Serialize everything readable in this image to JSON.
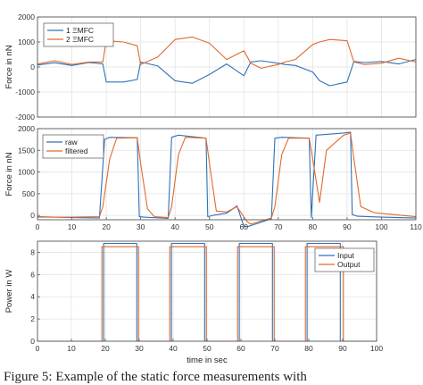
{
  "caption": "Figure 5: Example of the static force measurements with",
  "chart_data": [
    {
      "type": "line",
      "title": "",
      "xlabel": "",
      "ylabel": "Force in nN",
      "xlim": [
        0,
        110
      ],
      "ylim": [
        -2000,
        2000
      ],
      "yticks": [
        "2000",
        "1000",
        "0",
        "-1000",
        "-2000"
      ],
      "yticks_values": [
        2000,
        1000,
        0,
        -1000,
        -2000
      ],
      "grid": true,
      "legend": "top-left",
      "series": [
        {
          "name": "1 ΞMFC",
          "color": "#2e72b8",
          "x": [
            0,
            5,
            10,
            15,
            19,
            20,
            25,
            29,
            30,
            35,
            40,
            45,
            50,
            55,
            60,
            62,
            65,
            70,
            72,
            75,
            80,
            82,
            85,
            90,
            92,
            95,
            100,
            105,
            110
          ],
          "y": [
            80,
            170,
            60,
            180,
            120,
            -600,
            -600,
            -500,
            200,
            40,
            -550,
            -650,
            -300,
            120,
            -350,
            200,
            250,
            150,
            100,
            60,
            -200,
            -550,
            -750,
            -600,
            220,
            180,
            220,
            120,
            300
          ]
        },
        {
          "name": "2 ΞMFC",
          "color": "#e06a2c",
          "x": [
            0,
            5,
            10,
            15,
            19,
            20,
            25,
            29,
            30,
            35,
            40,
            45,
            50,
            55,
            60,
            62,
            65,
            70,
            72,
            75,
            80,
            82,
            85,
            90,
            92,
            95,
            100,
            105,
            110
          ],
          "y": [
            120,
            250,
            100,
            200,
            200,
            1050,
            1000,
            850,
            100,
            400,
            1100,
            1200,
            950,
            300,
            650,
            150,
            -50,
            100,
            200,
            300,
            900,
            1000,
            1100,
            1050,
            200,
            100,
            150,
            350,
            200
          ]
        }
      ]
    },
    {
      "type": "line",
      "title": "",
      "xlabel": "",
      "ylabel": "Force in nN",
      "xlim": [
        0,
        110
      ],
      "ylim": [
        -100,
        2000
      ],
      "xticks": [
        0,
        10,
        20,
        30,
        40,
        50,
        60,
        70,
        80,
        90,
        100,
        110
      ],
      "yticks": [
        "2000",
        "1500",
        "1000",
        "500",
        "0"
      ],
      "yticks_values": [
        2000,
        1500,
        1000,
        500,
        0
      ],
      "grid": true,
      "legend": "top-left",
      "series": [
        {
          "name": "raw",
          "color": "#2e72b8",
          "x": [
            0,
            10,
            18,
            19.5,
            21,
            29,
            29.6,
            31,
            38,
            39,
            41,
            49,
            49.5,
            51,
            55,
            58,
            60,
            61,
            68,
            69,
            71,
            79,
            79.6,
            81,
            89,
            91,
            91.5,
            93,
            100,
            110
          ],
          "y": [
            -30,
            -50,
            -60,
            1750,
            1800,
            1790,
            -30,
            -40,
            -70,
            1800,
            1850,
            1780,
            -30,
            0,
            50,
            220,
            -250,
            -260,
            -80,
            1780,
            1800,
            1780,
            -50,
            1850,
            1900,
            1920,
            20,
            -20,
            -40,
            -60
          ]
        },
        {
          "name": "filtered",
          "color": "#e06a2c",
          "x": [
            0,
            10,
            18,
            19,
            21,
            23,
            29,
            30,
            32,
            34,
            38,
            39,
            41,
            43,
            49,
            50,
            52,
            55,
            58,
            61,
            62,
            68,
            69,
            71,
            73,
            79,
            80,
            82,
            84,
            89,
            91,
            92,
            94,
            98,
            110
          ],
          "y": [
            -40,
            -40,
            -30,
            200,
            1300,
            1780,
            1790,
            1200,
            150,
            -30,
            -50,
            200,
            1400,
            1800,
            1780,
            1200,
            100,
            80,
            200,
            -150,
            -200,
            -60,
            200,
            1400,
            1780,
            1780,
            1300,
            300,
            1500,
            1850,
            1900,
            1300,
            200,
            60,
            -30
          ]
        }
      ]
    },
    {
      "type": "line",
      "title": "",
      "xlabel": "time in sec",
      "ylabel": "Power in W",
      "xlim": [
        0,
        100
      ],
      "ylim": [
        0,
        9
      ],
      "xticks": [
        0,
        10,
        20,
        30,
        40,
        50,
        60,
        70,
        80,
        90,
        100
      ],
      "yticks": [
        "8",
        "6",
        "4",
        "2",
        "0"
      ],
      "yticks_values": [
        8,
        6,
        4,
        2,
        0
      ],
      "grid": true,
      "legend": "top-right",
      "series": [
        {
          "name": "Input",
          "color": "#2e72b8",
          "x": [
            0,
            19.5,
            19.5,
            29.3,
            29.3,
            39.5,
            39.5,
            49.3,
            49.3,
            59.5,
            59.5,
            69.3,
            69.3,
            79.5,
            79.5,
            89.3,
            89.3,
            100
          ],
          "y": [
            0,
            0,
            8.8,
            8.8,
            0,
            0,
            8.8,
            8.8,
            0,
            0,
            8.8,
            8.8,
            0,
            0,
            8.8,
            8.8,
            0,
            0
          ]
        },
        {
          "name": "Output",
          "color": "#e06a2c",
          "x": [
            0,
            19,
            19,
            29.8,
            29.8,
            39,
            39,
            49.8,
            49.8,
            59,
            59,
            69.8,
            69.8,
            79,
            79,
            90.2,
            90.2,
            100
          ],
          "y": [
            0,
            0,
            8.5,
            8.5,
            0,
            0,
            8.5,
            8.5,
            0,
            0,
            8.5,
            8.5,
            0,
            0,
            8.5,
            8.5,
            0,
            0
          ]
        }
      ]
    }
  ]
}
